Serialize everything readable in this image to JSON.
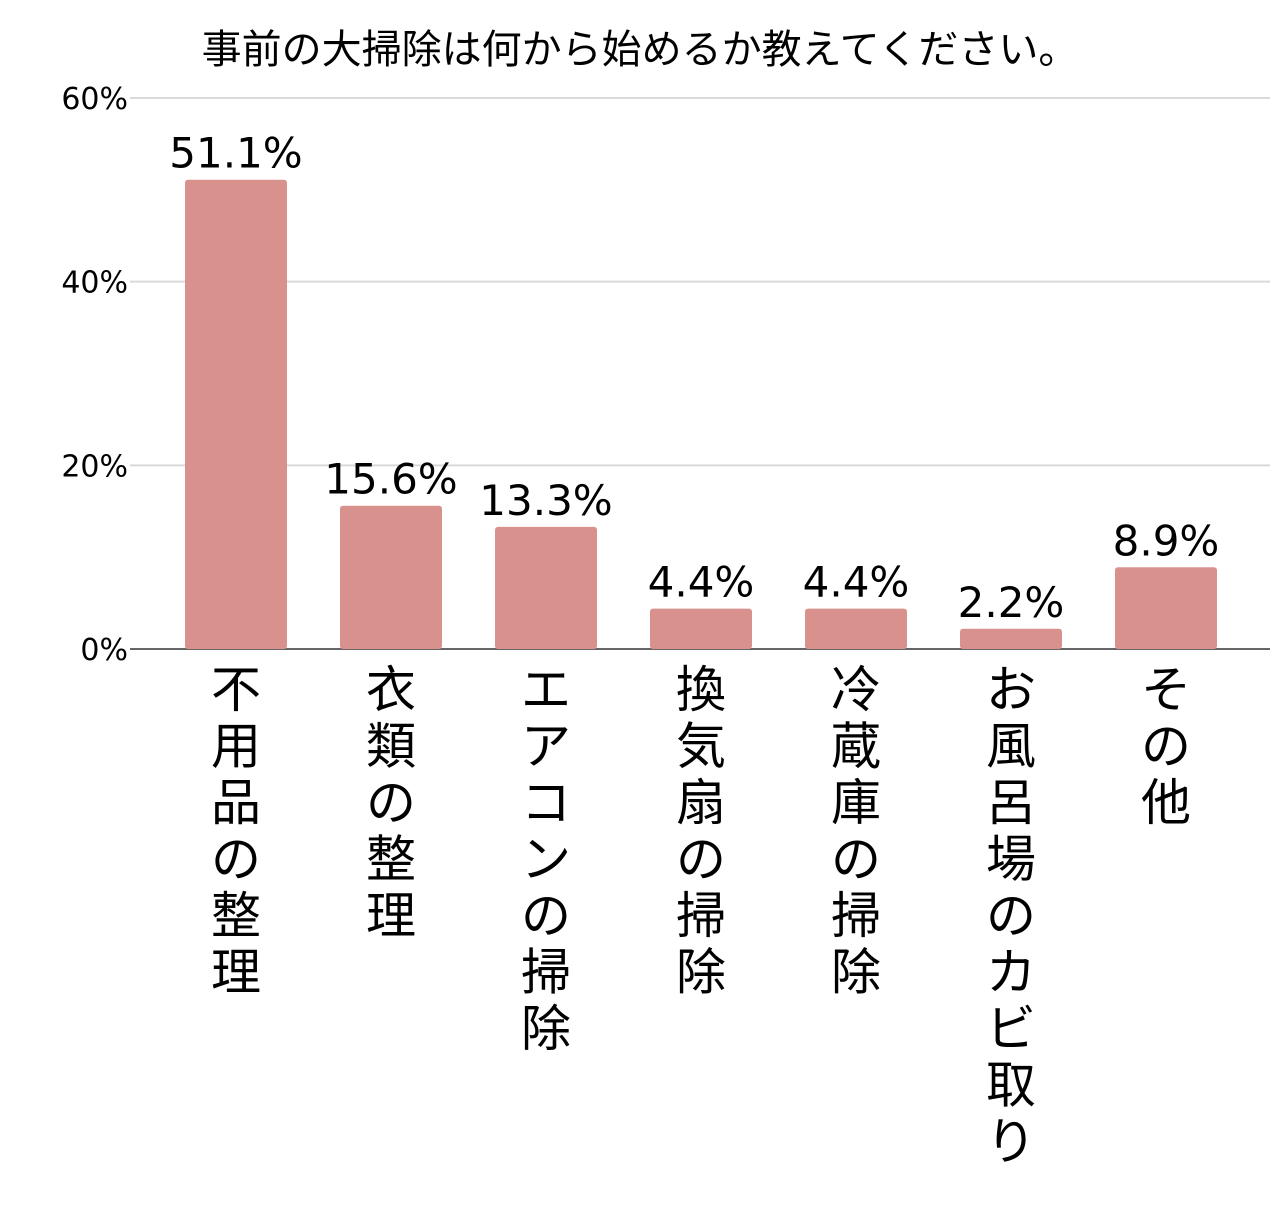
{
  "chart_data": {
    "type": "bar",
    "title": "事前の大掃除は何から始めるか教えてください。",
    "xlabel": "",
    "ylabel": "",
    "categories": [
      "不用品の整理",
      "衣類の整理",
      "エアコンの掃除",
      "換気扇の掃除",
      "冷蔵庫の掃除",
      "お風呂場のカビ取り",
      "その他"
    ],
    "values": [
      51.1,
      15.6,
      13.3,
      4.4,
      4.4,
      2.2,
      8.9
    ],
    "data_labels": [
      "51.1%",
      "15.6%",
      "13.3%",
      "4.4%",
      "4.4%",
      "2.2%",
      "8.9%"
    ],
    "ylim": [
      0,
      60
    ],
    "yticks": [
      0,
      20,
      40,
      60
    ],
    "ytick_labels": [
      "0%",
      "20%",
      "40%",
      "60%"
    ],
    "grid": true,
    "legend": "none",
    "bar_color": "#d9918d"
  }
}
